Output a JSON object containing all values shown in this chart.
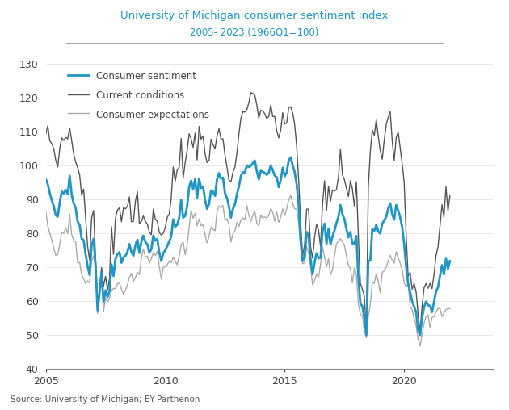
{
  "title": "University of Michigan consumer sentiment index",
  "subtitle": "2005- 2023 (1966Q1=100)",
  "source": "Source: University of Michigan; EY-Parthenon",
  "title_color": "#2196c4",
  "subtitle_color": "#2196c4",
  "xlim": [
    2005.0,
    2023.75
  ],
  "ylim": [
    40,
    130
  ],
  "yticks": [
    40,
    50,
    60,
    70,
    80,
    90,
    100,
    110,
    120,
    130
  ],
  "xticks": [
    2005,
    2010,
    2015,
    2020
  ],
  "legend_items": [
    "Consumer sentiment",
    "Current conditions",
    "Consumer expectations"
  ],
  "sentiment_color": "#2196c4",
  "current_color": "#555555",
  "expectations_color": "#aaaaaa",
  "consumer_sentiment": [
    96.0,
    94.4,
    91.8,
    89.7,
    88.0,
    85.3,
    84.9,
    89.1,
    92.3,
    91.7,
    92.8,
    91.5,
    96.9,
    91.3,
    88.8,
    87.4,
    83.4,
    82.4,
    78.4,
    78.0,
    73.8,
    70.3,
    67.7,
    76.4,
    78.4,
    70.3,
    57.3,
    62.5,
    68.4,
    59.8,
    63.2,
    61.2,
    63.0,
    70.8,
    67.4,
    72.5,
    73.9,
    74.4,
    71.3,
    72.9,
    73.3,
    74.5,
    76.8,
    74.5,
    73.4,
    76.5,
    78.1,
    74.2,
    77.5,
    79.3,
    77.5,
    76.8,
    74.3,
    75.3,
    79.3,
    77.8,
    78.3,
    74.3,
    71.8,
    74.1,
    75.0,
    76.2,
    77.6,
    79.0,
    84.1,
    81.9,
    82.5,
    84.6,
    89.9,
    84.6,
    85.1,
    88.0,
    93.6,
    95.5,
    93.0,
    95.9,
    90.3,
    96.1,
    93.3,
    93.8,
    89.7,
    87.2,
    88.6,
    92.6,
    92.2,
    91.0,
    95.9,
    97.7,
    96.1,
    96.4,
    91.8,
    90.4,
    87.9,
    84.6,
    87.2,
    88.5,
    91.5,
    93.8,
    96.9,
    98.0,
    97.9,
    100.0,
    99.5,
    99.9,
    100.7,
    101.4,
    98.3,
    95.9,
    98.4,
    98.1,
    97.8,
    97.2,
    97.9,
    100.0,
    98.6,
    97.0,
    96.5,
    93.6,
    95.7,
    99.3,
    96.8,
    97.9,
    101.4,
    102.4,
    100.0,
    98.0,
    94.5,
    88.3,
    78.1,
    71.8,
    72.8,
    80.4,
    79.2,
    72.3,
    67.9,
    71.4,
    74.1,
    72.6,
    72.8,
    80.7,
    82.8,
    76.9,
    81.4,
    76.8,
    79.0,
    80.8,
    83.0,
    84.9,
    88.3,
    85.5,
    84.2,
    81.2,
    78.8,
    80.4,
    77.0,
    76.9,
    79.2,
    67.2,
    59.4,
    58.4,
    55.2,
    50.0,
    71.8,
    72.0,
    81.2,
    80.7,
    82.5,
    80.5,
    79.9,
    82.8,
    83.8,
    84.9,
    87.3,
    88.8,
    85.5,
    84.0,
    88.3,
    86.7,
    84.7,
    81.8,
    76.8,
    70.3,
    65.2,
    62.8,
    59.9,
    58.4,
    56.8,
    51.5,
    50.0,
    55.1,
    58.2,
    59.9,
    58.8,
    58.6,
    56.8,
    59.7,
    62.8,
    64.1,
    67.4,
    70.6,
    67.9,
    72.5,
    69.5,
    71.8
  ],
  "current_conditions": [
    109.2,
    111.7,
    107.2,
    106.4,
    104.9,
    101.5,
    99.5,
    105.0,
    108.1,
    107.3,
    108.2,
    107.8,
    111.0,
    107.3,
    103.3,
    101.0,
    99.3,
    97.2,
    91.2,
    93.0,
    84.5,
    76.2,
    72.1,
    84.5,
    86.7,
    72.3,
    59.0,
    63.5,
    69.9,
    64.4,
    67.3,
    63.3,
    66.6,
    81.9,
    73.8,
    84.5,
    86.9,
    87.5,
    83.4,
    87.5,
    87.2,
    87.9,
    90.7,
    83.4,
    83.5,
    89.4,
    92.3,
    82.9,
    83.5,
    85.1,
    83.5,
    82.7,
    80.3,
    79.6,
    87.1,
    84.2,
    83.5,
    80.2,
    79.5,
    80.0,
    81.7,
    84.7,
    85.6,
    90.3,
    99.5,
    95.3,
    98.7,
    99.5,
    107.9,
    96.3,
    100.8,
    104.4,
    109.3,
    107.8,
    105.3,
    109.5,
    101.6,
    111.5,
    107.7,
    108.7,
    103.4,
    100.8,
    101.5,
    107.7,
    106.1,
    104.9,
    108.7,
    110.8,
    107.8,
    107.8,
    103.0,
    99.5,
    95.7,
    95.1,
    98.0,
    99.5,
    103.7,
    109.3,
    113.9,
    115.8,
    115.7,
    116.5,
    118.5,
    121.4,
    121.2,
    120.6,
    117.8,
    113.9,
    116.2,
    116.1,
    115.2,
    113.8,
    114.4,
    117.8,
    114.4,
    114.4,
    110.2,
    108.1,
    110.4,
    115.5,
    112.2,
    112.5,
    117.0,
    117.3,
    115.5,
    112.1,
    105.7,
    95.9,
    83.1,
    73.2,
    76.6,
    87.1,
    87.1,
    76.1,
    72.6,
    78.7,
    82.6,
    80.9,
    76.1,
    88.5,
    95.5,
    86.6,
    93.9,
    89.4,
    92.8,
    92.4,
    92.9,
    96.5,
    104.8,
    97.2,
    95.8,
    93.3,
    90.8,
    95.5,
    93.1,
    88.0,
    95.2,
    79.1,
    65.3,
    63.5,
    61.5,
    51.0,
    93.5,
    104.0,
    110.4,
    108.8,
    113.5,
    108.5,
    104.3,
    101.8,
    107.5,
    112.0,
    114.2,
    115.8,
    107.2,
    101.5,
    108.2,
    109.8,
    105.2,
    100.5,
    95.1,
    79.5,
    67.3,
    68.5,
    63.5,
    65.2,
    62.8,
    56.2,
    51.0,
    58.5,
    64.0,
    65.2,
    63.8,
    65.2,
    63.7,
    67.7,
    73.4,
    75.9,
    82.2,
    88.4,
    84.7,
    93.7,
    86.5,
    91.1
  ],
  "consumer_expectations": [
    86.5,
    82.1,
    80.0,
    78.0,
    75.6,
    73.5,
    73.7,
    76.7,
    80.4,
    80.0,
    81.4,
    79.9,
    85.6,
    79.5,
    78.0,
    77.4,
    71.2,
    71.4,
    67.8,
    66.5,
    65.1,
    66.0,
    65.3,
    71.8,
    73.4,
    69.9,
    56.3,
    62.5,
    68.0,
    57.0,
    60.9,
    59.8,
    60.8,
    63.1,
    63.7,
    63.7,
    65.1,
    65.4,
    63.5,
    62.0,
    63.2,
    64.8,
    67.0,
    68.2,
    65.8,
    66.9,
    68.5,
    67.8,
    72.7,
    75.4,
    73.1,
    73.2,
    71.2,
    72.5,
    74.3,
    73.4,
    74.7,
    70.2,
    66.5,
    70.0,
    70.2,
    70.7,
    71.9,
    71.3,
    73.0,
    71.8,
    70.7,
    73.2,
    76.7,
    77.4,
    73.7,
    76.5,
    81.8,
    86.8,
    84.4,
    85.9,
    82.2,
    84.2,
    82.2,
    82.5,
    79.5,
    77.2,
    79.1,
    81.8,
    81.2,
    80.7,
    86.3,
    88.1,
    87.5,
    88.2,
    83.8,
    84.3,
    82.6,
    77.4,
    79.9,
    80.7,
    83.2,
    82.0,
    84.0,
    84.5,
    84.0,
    88.1,
    85.3,
    83.5,
    85.3,
    86.5,
    83.0,
    82.2,
    85.3,
    84.5,
    84.8,
    84.5,
    85.2,
    87.3,
    86.2,
    83.5,
    86.2,
    83.2,
    84.8,
    87.2,
    85.2,
    87.2,
    89.8,
    91.2,
    88.8,
    87.2,
    87.1,
    83.2,
    75.6,
    71.0,
    71.3,
    76.2,
    74.2,
    70.0,
    64.8,
    66.0,
    68.0,
    67.0,
    70.9,
    76.0,
    73.0,
    70.1,
    72.5,
    67.8,
    69.2,
    73.3,
    76.9,
    77.7,
    78.4,
    77.5,
    76.5,
    73.3,
    70.5,
    69.7,
    65.4,
    69.8,
    67.8,
    59.2,
    56.2,
    55.7,
    51.2,
    49.2,
    55.5,
    59.0,
    65.5,
    65.2,
    68.2,
    65.8,
    62.5,
    68.5,
    68.9,
    70.0,
    71.8,
    73.5,
    72.0,
    71.2,
    74.5,
    72.8,
    71.2,
    69.2,
    65.4,
    64.2,
    65.0,
    58.5,
    57.5,
    55.0,
    52.8,
    48.8,
    46.8,
    50.2,
    53.5,
    55.5,
    56.0,
    52.2,
    55.2,
    55.4,
    56.8,
    57.8,
    57.8,
    55.5,
    56.5,
    57.5,
    57.8,
    57.8
  ]
}
